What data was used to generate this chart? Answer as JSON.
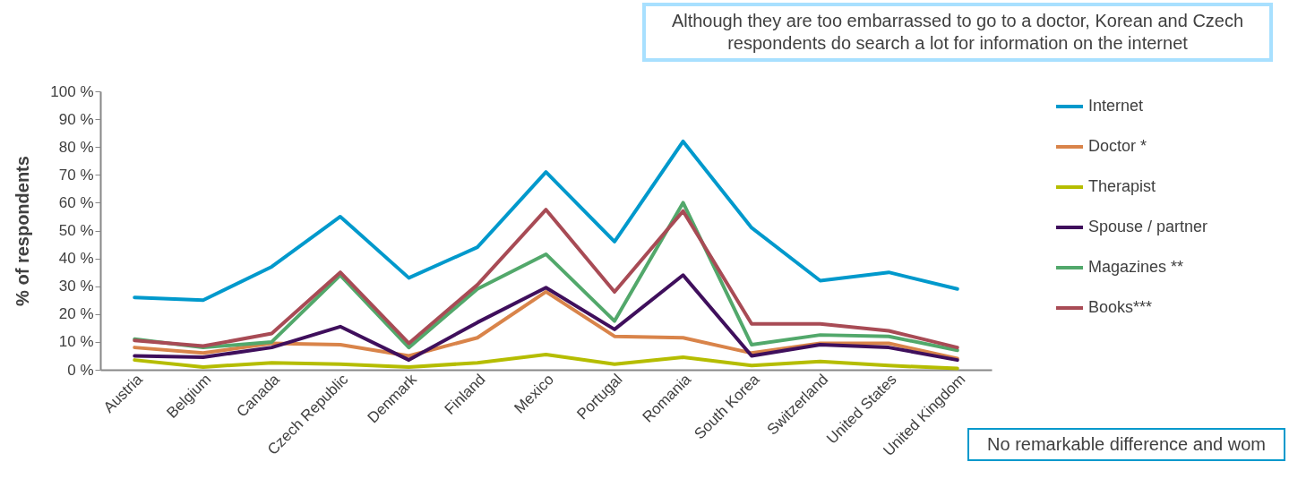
{
  "chart_data": {
    "type": "line",
    "ylabel": "% of respondents",
    "categories": [
      "Austria",
      "Belgium",
      "Canada",
      "Czech Republic",
      "Denmark",
      "Finland",
      "Mexico",
      "Portugal",
      "Romania",
      "South Korea",
      "Switzerland",
      "United States",
      "United Kingdom"
    ],
    "series": [
      {
        "name": "Internet",
        "color": "#0099cc",
        "values": [
          26,
          25,
          37,
          55,
          33,
          44,
          71,
          46,
          82,
          51,
          32,
          35,
          29
        ]
      },
      {
        "name": "Doctor *",
        "color": "#d9844a",
        "values": [
          8,
          6,
          9.5,
          9,
          5,
          11.5,
          28,
          12,
          11.5,
          6,
          9.5,
          9.5,
          4
        ]
      },
      {
        "name": "Therapist",
        "color": "#b5bd00",
        "values": [
          3.5,
          1,
          2.5,
          2,
          1,
          2.5,
          5.5,
          2,
          4.5,
          1.5,
          3,
          1.5,
          0.5
        ]
      },
      {
        "name": "Spouse / partner",
        "color": "#3f0f5c",
        "values": [
          5,
          4.5,
          8,
          15.5,
          3.5,
          17,
          29.5,
          14.5,
          34,
          5,
          9,
          8,
          3.5
        ]
      },
      {
        "name": "Magazines **",
        "color": "#52a86b",
        "values": [
          11,
          8,
          10,
          34,
          8,
          29,
          41.5,
          17.5,
          60,
          9,
          12.5,
          12,
          7
        ]
      },
      {
        "name": "Books***",
        "color": "#a84b55",
        "values": [
          10.5,
          8.5,
          13,
          35,
          9.5,
          30.5,
          57.5,
          28,
          57,
          16.5,
          16.5,
          14,
          8
        ]
      }
    ],
    "ylim": [
      0,
      100
    ],
    "yticks": [
      {
        "value": 0,
        "label": "0 %"
      },
      {
        "value": 10,
        "label": "10 %"
      },
      {
        "value": 20,
        "label": "20 %"
      },
      {
        "value": 30,
        "label": "30 %"
      },
      {
        "value": 40,
        "label": "40 %"
      },
      {
        "value": 50,
        "label": "50 %"
      },
      {
        "value": 60,
        "label": "60 %"
      },
      {
        "value": 70,
        "label": "70 %"
      },
      {
        "value": 80,
        "label": "80 %"
      },
      {
        "value": 90,
        "label": "90 %"
      },
      {
        "value": 100,
        "label": "100 %"
      }
    ],
    "grid": false,
    "legend": "right",
    "marker": "none",
    "line_style": "solid",
    "annotations": [
      "Although they are too embarrassed to go to a doctor, Korean and Czech respondents do search a lot for information on the internet",
      "No remarkable difference and wom"
    ]
  }
}
